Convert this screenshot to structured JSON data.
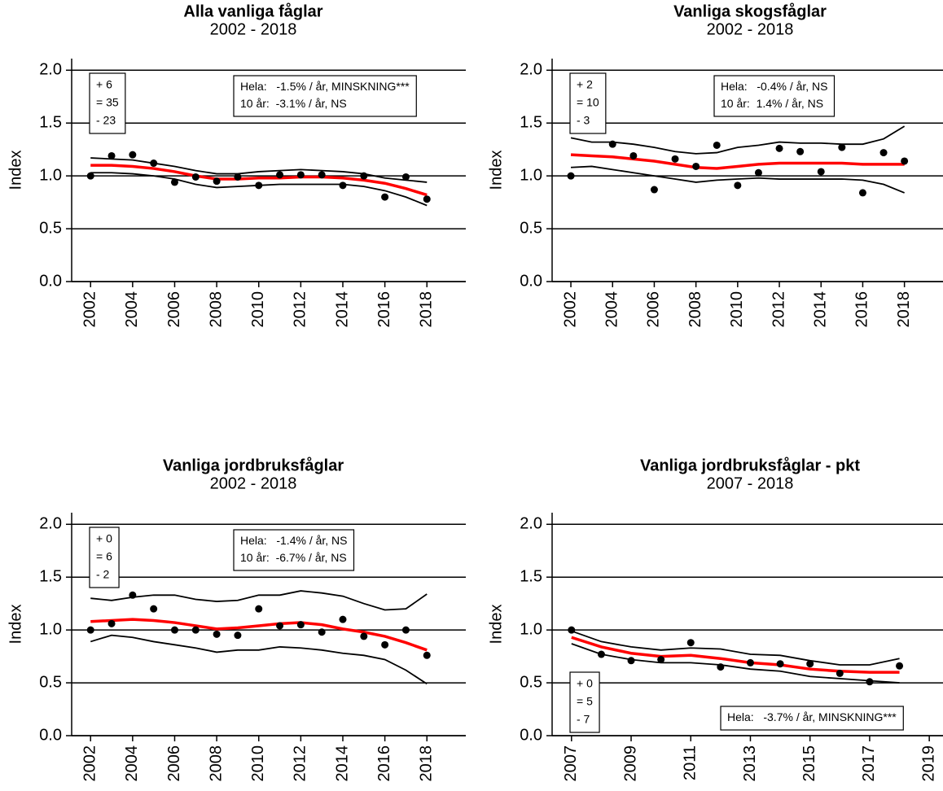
{
  "chart_data": [
    {
      "type": "line",
      "title": "Alla vanliga fåglar",
      "subtitle": "2002 - 2018",
      "ylabel": "Index",
      "x": [
        2002,
        2003,
        2004,
        2005,
        2006,
        2007,
        2008,
        2009,
        2010,
        2011,
        2012,
        2013,
        2014,
        2015,
        2016,
        2017,
        2018
      ],
      "series": [
        {
          "mark": "line",
          "color": "#000000",
          "values": [
            1.17,
            1.16,
            1.15,
            1.12,
            1.09,
            1.05,
            1.02,
            1.02,
            1.04,
            1.05,
            1.06,
            1.05,
            1.04,
            1.02,
            0.98,
            0.96,
            0.94
          ]
        },
        {
          "mark": "line",
          "color": "#000000",
          "values": [
            1.03,
            1.03,
            1.02,
            1.0,
            0.97,
            0.92,
            0.89,
            0.9,
            0.91,
            0.92,
            0.92,
            0.92,
            0.92,
            0.9,
            0.86,
            0.8,
            0.72
          ]
        },
        {
          "mark": "line",
          "color": "#ff0000",
          "values": [
            1.1,
            1.1,
            1.09,
            1.07,
            1.04,
            1.0,
            0.97,
            0.97,
            0.98,
            0.98,
            0.99,
            0.99,
            0.98,
            0.96,
            0.93,
            0.88,
            0.82
          ]
        },
        {
          "mark": "point",
          "color": "#000000",
          "values": [
            1.0,
            1.19,
            1.2,
            1.12,
            0.94,
            0.99,
            0.95,
            0.99,
            0.91,
            1.01,
            1.01,
            1.01,
            0.91,
            1.0,
            0.8,
            0.99,
            0.78
          ]
        }
      ],
      "counts": [
        "+ 6",
        "= 35",
        "- 23"
      ],
      "counts_corner": "upper left",
      "stats": [
        "Hela:   -1.5% / år, MINSKNING***",
        "10 år:  -3.1% / år, NS"
      ],
      "stats_corner": "upper right",
      "xlim": [
        2001.1,
        2019.85
      ],
      "xticks": [
        2002,
        2004,
        2006,
        2008,
        2010,
        2012,
        2014,
        2016,
        2018
      ],
      "ylim": [
        0,
        2.11
      ],
      "yticks": [
        {
          "value": 0,
          "label": "0.0"
        },
        0.5,
        {
          "value": 1,
          "label": "1.0"
        },
        1.5,
        {
          "value": 2,
          "label": "2.0"
        }
      ],
      "grid": true
    },
    {
      "type": "line",
      "title": "Vanliga skogsfåglar",
      "subtitle": "2002 - 2018",
      "ylabel": "Index",
      "x": [
        2002,
        2003,
        2004,
        2005,
        2006,
        2007,
        2008,
        2009,
        2010,
        2011,
        2012,
        2013,
        2014,
        2015,
        2016,
        2017,
        2018
      ],
      "series": [
        {
          "mark": "line",
          "color": "#000000",
          "values": [
            1.36,
            1.32,
            1.32,
            1.3,
            1.27,
            1.23,
            1.21,
            1.22,
            1.27,
            1.29,
            1.32,
            1.31,
            1.31,
            1.3,
            1.3,
            1.35,
            1.47
          ]
        },
        {
          "mark": "line",
          "color": "#000000",
          "values": [
            1.08,
            1.09,
            1.06,
            1.03,
            1.0,
            0.97,
            0.94,
            0.96,
            0.97,
            0.98,
            0.97,
            0.97,
            0.97,
            0.97,
            0.96,
            0.92,
            0.84
          ]
        },
        {
          "mark": "line",
          "color": "#ff0000",
          "values": [
            1.2,
            1.19,
            1.18,
            1.16,
            1.14,
            1.11,
            1.08,
            1.07,
            1.09,
            1.11,
            1.12,
            1.12,
            1.12,
            1.12,
            1.11,
            1.11,
            1.11
          ]
        },
        {
          "mark": "point",
          "color": "#000000",
          "values": [
            1.0,
            null,
            1.3,
            1.19,
            0.87,
            1.16,
            1.09,
            1.29,
            0.91,
            1.03,
            1.26,
            1.23,
            1.04,
            1.27,
            0.84,
            1.22,
            1.14
          ]
        }
      ],
      "counts": [
        "+ 2",
        "= 10",
        "- 3"
      ],
      "counts_corner": "upper left",
      "stats": [
        "Hela:   -0.4% / år, NS",
        "10 år:  1.4% / år, NS"
      ],
      "stats_corner": "upper right",
      "xlim": [
        2001.1,
        2019.85
      ],
      "xticks": [
        2002,
        2004,
        2006,
        2008,
        2010,
        2012,
        2014,
        2016,
        2018
      ],
      "ylim": [
        0,
        2.11
      ],
      "yticks": [
        {
          "value": 0,
          "label": "0.0"
        },
        0.5,
        {
          "value": 1,
          "label": "1.0"
        },
        1.5,
        {
          "value": 2,
          "label": "2.0"
        }
      ],
      "grid": true
    },
    {
      "type": "line",
      "title": "Vanliga jordbruksfåglar",
      "subtitle": "2002 - 2018",
      "ylabel": "Index",
      "x": [
        2002,
        2003,
        2004,
        2005,
        2006,
        2007,
        2008,
        2009,
        2010,
        2011,
        2012,
        2013,
        2014,
        2015,
        2016,
        2017,
        2018
      ],
      "series": [
        {
          "mark": "line",
          "color": "#000000",
          "values": [
            1.3,
            1.28,
            1.31,
            1.33,
            1.33,
            1.29,
            1.27,
            1.28,
            1.33,
            1.33,
            1.37,
            1.35,
            1.32,
            1.25,
            1.19,
            1.2,
            1.34
          ]
        },
        {
          "mark": "line",
          "color": "#000000",
          "values": [
            0.89,
            0.95,
            0.93,
            0.89,
            0.86,
            0.83,
            0.79,
            0.81,
            0.81,
            0.84,
            0.83,
            0.81,
            0.78,
            0.76,
            0.72,
            0.62,
            0.49
          ]
        },
        {
          "mark": "line",
          "color": "#ff0000",
          "values": [
            1.08,
            1.09,
            1.1,
            1.09,
            1.07,
            1.04,
            1.01,
            1.02,
            1.04,
            1.06,
            1.07,
            1.05,
            1.01,
            0.98,
            0.94,
            0.88,
            0.81
          ]
        },
        {
          "mark": "point",
          "color": "#000000",
          "values": [
            1.0,
            1.06,
            1.33,
            1.2,
            1.0,
            1.0,
            0.96,
            0.95,
            1.2,
            1.04,
            1.05,
            0.98,
            1.1,
            0.94,
            0.86,
            1.0,
            0.76
          ]
        }
      ],
      "counts": [
        "+ 0",
        "= 6",
        "- 2"
      ],
      "counts_corner": "upper left",
      "stats": [
        "Hela:   -1.4% / år, NS",
        "10 år:  -6.7% / år, NS"
      ],
      "stats_corner": "upper right",
      "xlim": [
        2001.1,
        2019.85
      ],
      "xticks": [
        2002,
        2004,
        2006,
        2008,
        2010,
        2012,
        2014,
        2016,
        2018
      ],
      "ylim": [
        0,
        2.11
      ],
      "yticks": [
        {
          "value": 0,
          "label": "0.0"
        },
        0.5,
        {
          "value": 1,
          "label": "1.0"
        },
        1.5,
        {
          "value": 2,
          "label": "2.0"
        }
      ],
      "grid": true
    },
    {
      "type": "line",
      "title": "Vanliga jordbruksfåglar - pkt",
      "subtitle": "2007 - 2018",
      "ylabel": "Index",
      "x": [
        2007,
        2008,
        2009,
        2010,
        2011,
        2012,
        2013,
        2014,
        2015,
        2016,
        2017,
        2018
      ],
      "series": [
        {
          "mark": "line",
          "color": "#000000",
          "values": [
            0.99,
            0.89,
            0.84,
            0.81,
            0.83,
            0.82,
            0.77,
            0.76,
            0.71,
            0.67,
            0.67,
            0.73
          ]
        },
        {
          "mark": "line",
          "color": "#000000",
          "values": [
            0.87,
            0.77,
            0.72,
            0.69,
            0.69,
            0.67,
            0.63,
            0.61,
            0.56,
            0.54,
            0.52,
            0.5
          ]
        },
        {
          "mark": "line",
          "color": "#ff0000",
          "values": [
            0.93,
            0.84,
            0.78,
            0.75,
            0.76,
            0.73,
            0.69,
            0.67,
            0.63,
            0.61,
            0.6,
            0.6
          ]
        },
        {
          "mark": "point",
          "color": "#000000",
          "values": [
            1.0,
            0.77,
            0.71,
            0.72,
            0.88,
            0.65,
            0.69,
            0.68,
            0.68,
            0.59,
            0.51,
            0.66
          ]
        }
      ],
      "counts": [
        "+ 0",
        "= 5",
        "- 7"
      ],
      "counts_corner": "lower left",
      "stats": [
        "Hela:   -3.7% / år, MINSKNING***"
      ],
      "stats_corner": "lower right",
      "xlim": [
        2006.35,
        2019.46
      ],
      "xticks": [
        2007,
        2009,
        2011,
        2013,
        2015,
        2017,
        2019
      ],
      "ylim": [
        0,
        2.11
      ],
      "yticks": [
        {
          "value": 0,
          "label": "0.0"
        },
        0.5,
        {
          "value": 1,
          "label": "1.0"
        },
        1.5,
        {
          "value": 2,
          "label": "2.0"
        }
      ],
      "grid": true
    }
  ]
}
